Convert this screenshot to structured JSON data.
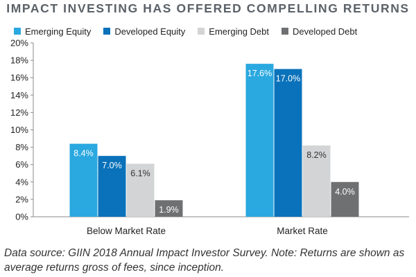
{
  "chart_data": {
    "type": "bar",
    "title": "IMPACT INVESTING HAS OFFERED COMPELLING RETURNS",
    "xlabel": "",
    "ylabel": "",
    "categories": [
      "Below Market Rate",
      "Market Rate"
    ],
    "series": [
      {
        "name": "Emerging Equity",
        "color": "#2aa8e0",
        "values": [
          8.4,
          17.6
        ],
        "labels": [
          "8.4%",
          "17.6%"
        ]
      },
      {
        "name": "Developed Equity",
        "color": "#0a72ba",
        "values": [
          7.0,
          17.0
        ],
        "labels": [
          "7.0%",
          "17.0%"
        ]
      },
      {
        "name": "Emerging Debt",
        "color": "#d2d4d5",
        "values": [
          6.1,
          8.2
        ],
        "labels": [
          "6.1%",
          "8.2%"
        ]
      },
      {
        "name": "Developed Debt",
        "color": "#6f7072",
        "values": [
          1.9,
          4.0
        ],
        "labels": [
          "1.9%",
          "4.0%"
        ]
      }
    ],
    "ylim": [
      0,
      20
    ],
    "yticks": [
      0,
      2,
      4,
      6,
      8,
      10,
      12,
      14,
      16,
      18,
      20
    ],
    "ytick_labels": [
      "0%",
      "2%",
      "4%",
      "6%",
      "8%",
      "10%",
      "12%",
      "14%",
      "16%",
      "18%",
      "20%"
    ],
    "grid": false,
    "legend_position": "top-left",
    "caption": "Data source: GIIN 2018 Annual Impact Investor Survey. Note: Returns are shown as average returns gross of fees, since inception."
  }
}
